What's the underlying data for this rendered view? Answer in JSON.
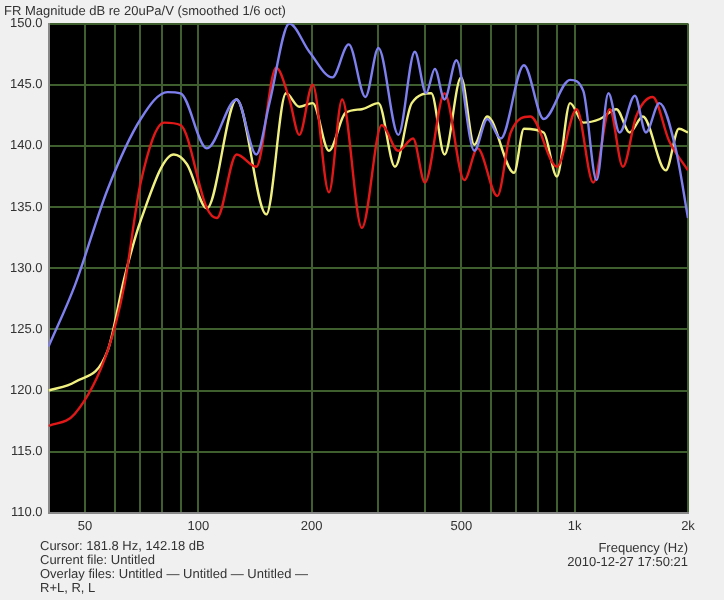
{
  "chart_data": {
    "type": "line",
    "title": "FR Magnitude dB re 20uPa/V (smoothed 1/6 oct)",
    "xlabel": "Frequency (Hz)",
    "log": "x",
    "grid": true,
    "xlim": [
      40,
      2000
    ],
    "xticks": [
      50,
      {
        "value": 60,
        "label": null
      },
      {
        "value": 70,
        "label": null
      },
      {
        "value": 80,
        "label": null
      },
      {
        "value": 90,
        "label": null
      },
      100,
      200,
      {
        "value": 300,
        "label": null
      },
      {
        "value": 400,
        "label": null
      },
      500,
      {
        "value": 600,
        "label": null
      },
      {
        "value": 700,
        "label": null
      },
      {
        "value": 800,
        "label": null
      },
      {
        "value": 900,
        "label": null
      },
      {
        "value": 1000,
        "label": "1k"
      },
      {
        "value": 2000,
        "label": "2k"
      }
    ],
    "ylim": [
      110,
      150
    ],
    "yticks": [
      {
        "value": 110,
        "label": "110.0"
      },
      {
        "value": 115,
        "label": "115.0"
      },
      {
        "value": 120,
        "label": "120.0"
      },
      {
        "value": 125,
        "label": "125.0"
      },
      {
        "value": 130,
        "label": "130.0"
      },
      {
        "value": 135,
        "label": "135.0"
      },
      {
        "value": 140,
        "label": "140.0"
      },
      {
        "value": 145,
        "label": "145.0"
      },
      {
        "value": 150,
        "label": "150.0"
      }
    ],
    "series": [
      {
        "color": "#7f80f0",
        "x": [
          40,
          47,
          57.5,
          70.3,
          82.8,
          89.7,
          105.4,
          126.4,
          142.6,
          154.5,
          174.6,
          197.2,
          227,
          251,
          278,
          301,
          340,
          376,
          403,
          425,
          451,
          485,
          541,
          586,
          636,
          733,
          827,
          972,
          1054,
          1143,
          1229,
          1316,
          1445,
          1546,
          1679,
          1854,
          2000
        ],
        "values": [
          123.6,
          128.6,
          136.5,
          142.2,
          144.4,
          144.3,
          139.8,
          143.8,
          139.3,
          143.5,
          150,
          147.7,
          145.6,
          148.3,
          144,
          148,
          140.9,
          147.7,
          144.3,
          146.3,
          143.8,
          147,
          139.6,
          142.2,
          140.6,
          146.6,
          142.2,
          145.4,
          144.5,
          137.2,
          144.3,
          141.1,
          144.1,
          141.1,
          143.5,
          139.8,
          134.1
        ]
      },
      {
        "color": "#e01818",
        "x": [
          40,
          47,
          57.5,
          63.6,
          70.3,
          81.1,
          89.7,
          105.4,
          112,
          126.4,
          142.6,
          161,
          174.6,
          185.5,
          201.3,
          222.4,
          241,
          272,
          307,
          340,
          372,
          400,
          451,
          509,
          552,
          623,
          676,
          763,
          897,
          1012,
          1120,
          1239,
          1343,
          1456,
          1611,
          1782,
          2000
        ],
        "values": [
          117.1,
          118.1,
          123.3,
          128.6,
          137,
          141.9,
          141.7,
          134.9,
          134.1,
          139.3,
          138.3,
          146.4,
          143.8,
          140.9,
          145,
          136.2,
          143.8,
          133.3,
          141.7,
          139.6,
          140.6,
          137,
          144.3,
          137.2,
          139.8,
          135.9,
          141.1,
          142.4,
          138.3,
          143,
          137,
          143,
          138.3,
          142.4,
          144,
          140.4,
          138
        ]
      },
      {
        "color": "#f0f080",
        "x": [
          40,
          47,
          57.5,
          63.6,
          70.3,
          86.1,
          93.3,
          105.4,
          126.4,
          151.6,
          171,
          185.5,
          201.3,
          222.4,
          246,
          272,
          301,
          333,
          369,
          416,
          451,
          499,
          541,
          586,
          690,
          733,
          827,
          897,
          972,
          1054,
          1167,
          1291,
          1400,
          1517,
          1746,
          1892,
          2000
        ],
        "values": [
          120,
          120.7,
          123.3,
          129.2,
          133.9,
          139.3,
          138.5,
          134.9,
          143.8,
          134.4,
          144.3,
          143.2,
          143.5,
          139.6,
          142.7,
          143,
          143.5,
          138.3,
          143.5,
          144.3,
          139.3,
          145.6,
          140.1,
          142.4,
          137.8,
          141.4,
          141.1,
          137.5,
          143.5,
          141.9,
          142.2,
          143,
          141.1,
          142.4,
          138,
          141.4,
          141.1
        ]
      }
    ],
    "annotations": [
      "Cursor: 181.8 Hz, 142.18 dB",
      "Current file: Untitled",
      "Overlay files: Untitled — Untitled — Untitled —",
      "R+L, R, L",
      "2010-12-27 17:50:21"
    ]
  }
}
